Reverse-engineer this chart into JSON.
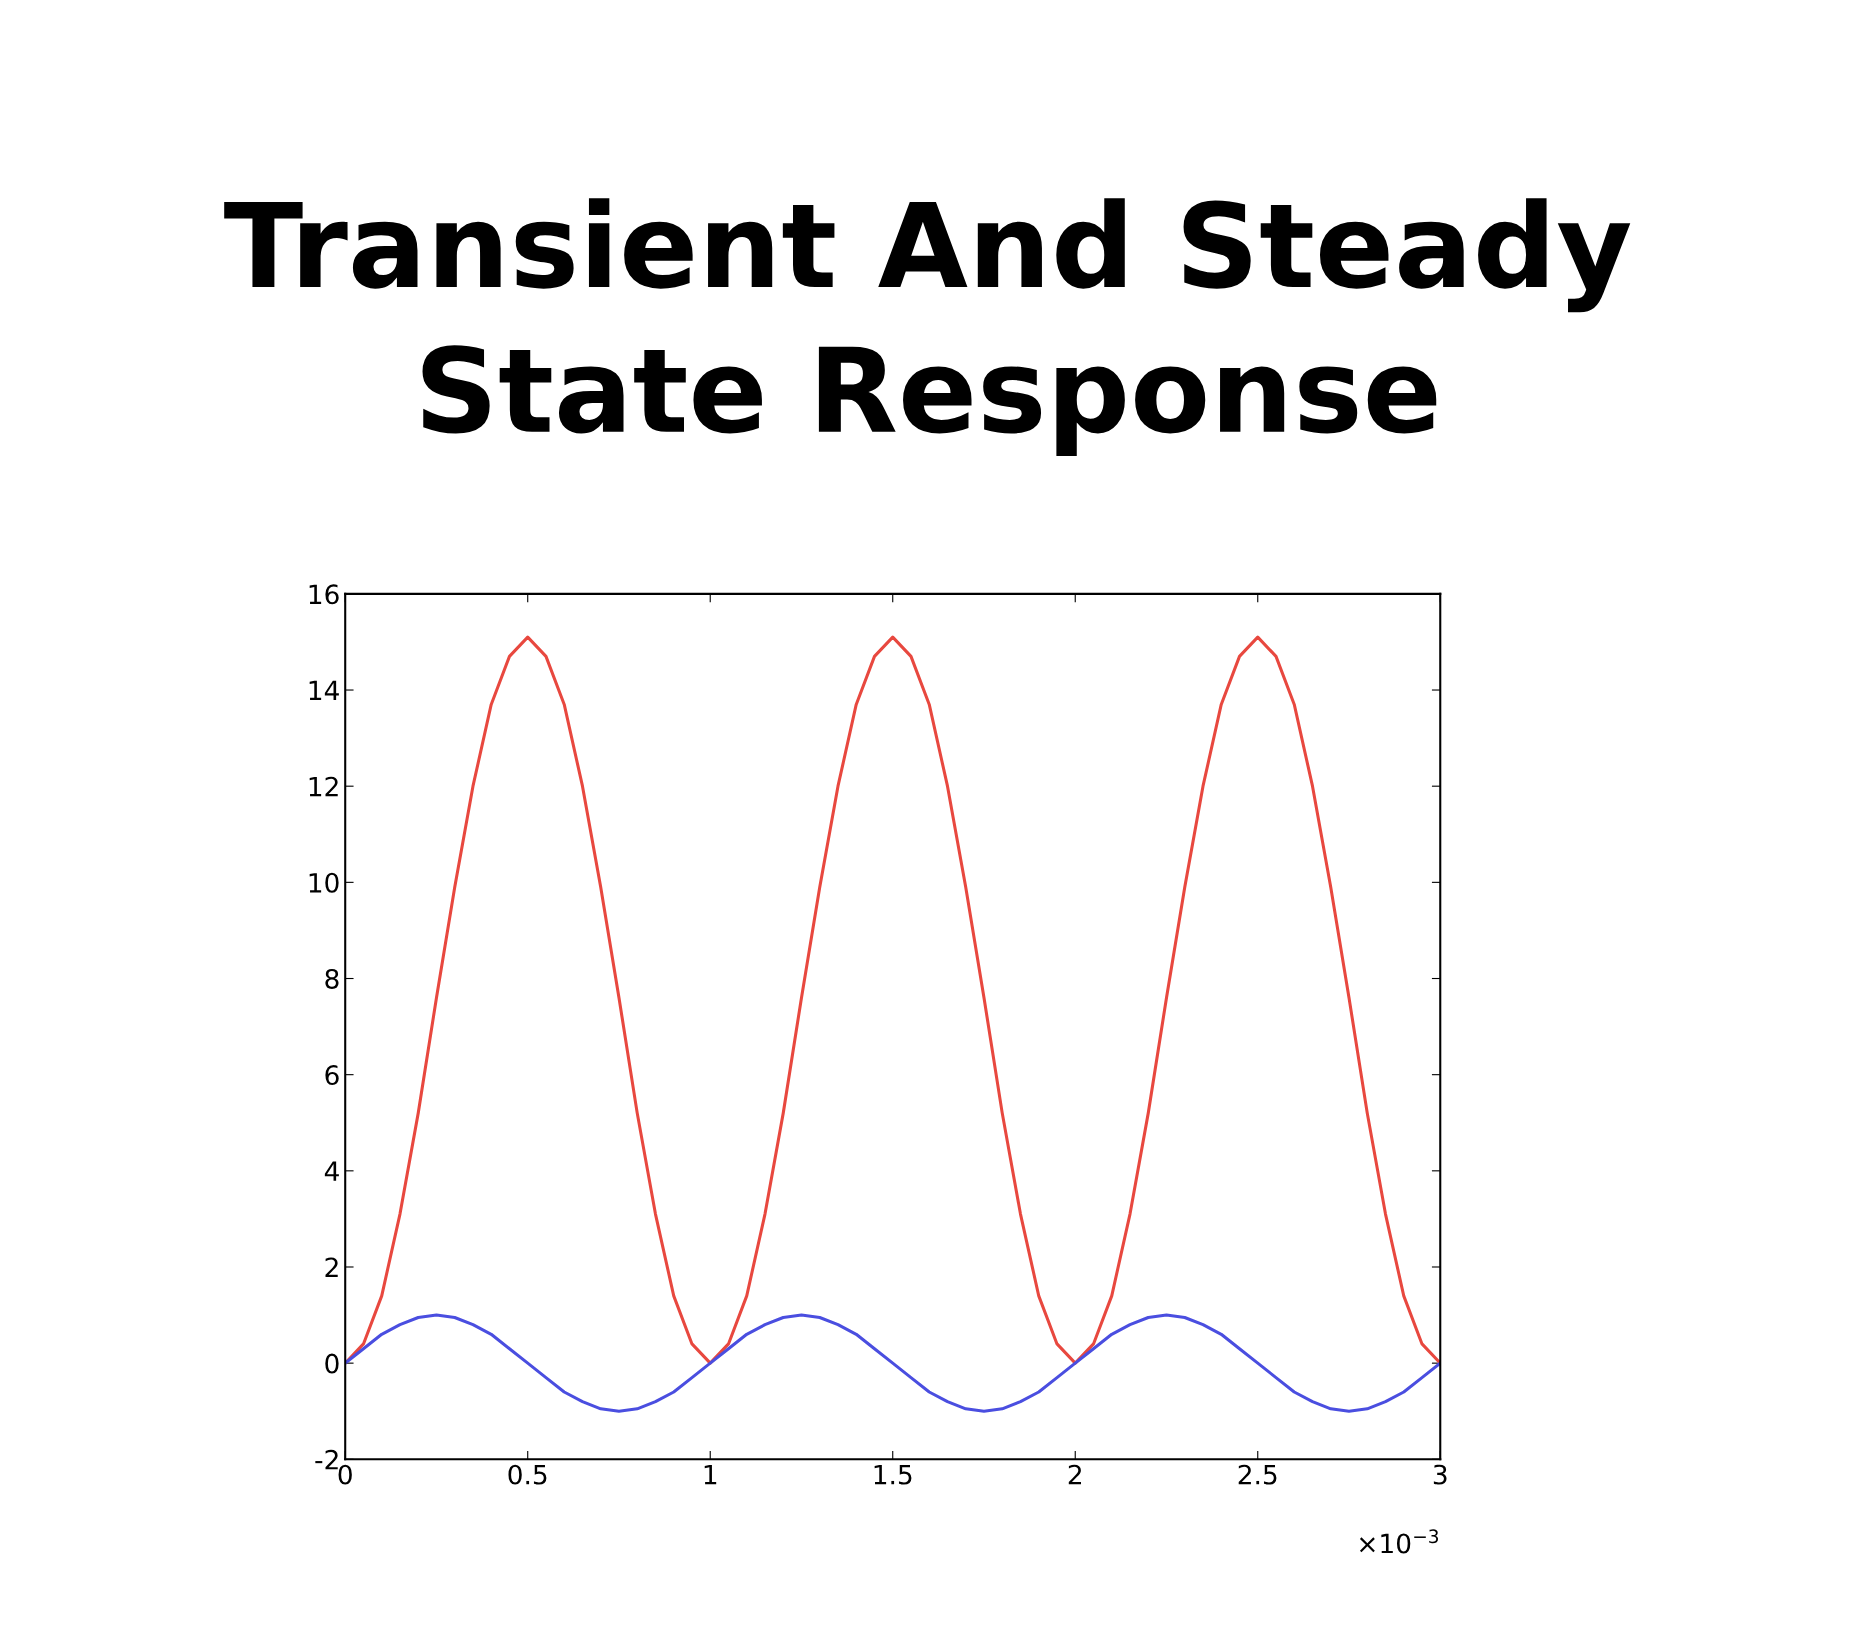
{
  "chart_data": {
    "type": "line",
    "title": "Transient And Steady\nState Response",
    "x": [
      0,
      0.05,
      0.1,
      0.15,
      0.2,
      0.25,
      0.3,
      0.35,
      0.4,
      0.45,
      0.5,
      0.55,
      0.6,
      0.65,
      0.7,
      0.75,
      0.8,
      0.85,
      0.9,
      0.95,
      1,
      1.05,
      1.1,
      1.15,
      1.2,
      1.25,
      1.3,
      1.35,
      1.4,
      1.45,
      1.5,
      1.55,
      1.6,
      1.65,
      1.7,
      1.75,
      1.8,
      1.85,
      1.9,
      1.95,
      2,
      2.05,
      2.1,
      2.15,
      2.2,
      2.25,
      2.3,
      2.35,
      2.4,
      2.45,
      2.5,
      2.55,
      2.6,
      2.65,
      2.7,
      2.75,
      2.8,
      2.85,
      2.9,
      2.95,
      3
    ],
    "series": [
      {
        "color": "#e8483f",
        "values": [
          0,
          0.4,
          1.4,
          3.1,
          5.2,
          7.6,
          9.9,
          12,
          13.7,
          14.7,
          15.1,
          14.7,
          13.7,
          12,
          9.9,
          7.6,
          5.2,
          3.1,
          1.4,
          0.4,
          0,
          0.4,
          1.4,
          3.1,
          5.2,
          7.6,
          9.9,
          12,
          13.7,
          14.7,
          15.1,
          14.7,
          13.7,
          12,
          9.9,
          7.6,
          5.2,
          3.1,
          1.4,
          0.4,
          0,
          0.4,
          1.4,
          3.1,
          5.2,
          7.6,
          9.9,
          12,
          13.7,
          14.7,
          15.1,
          14.7,
          13.7,
          12,
          9.9,
          7.6,
          5.2,
          3.1,
          1.4,
          0.4,
          0
        ]
      },
      {
        "color": "#4a4ee0",
        "values": [
          0,
          0.3,
          0.6,
          0.8,
          0.95,
          1,
          0.95,
          0.8,
          0.6,
          0.3,
          0,
          -0.3,
          -0.6,
          -0.8,
          -0.95,
          -1,
          -0.95,
          -0.8,
          -0.6,
          -0.3,
          0,
          0.3,
          0.6,
          0.8,
          0.95,
          1,
          0.95,
          0.8,
          0.6,
          0.3,
          0,
          -0.3,
          -0.6,
          -0.8,
          -0.95,
          -1,
          -0.95,
          -0.8,
          -0.6,
          -0.3,
          0,
          0.3,
          0.6,
          0.8,
          0.95,
          1,
          0.95,
          0.8,
          0.6,
          0.3,
          0,
          -0.3,
          -0.6,
          -0.8,
          -0.95,
          -1,
          -0.95,
          -0.8,
          -0.6,
          -0.3,
          0
        ]
      }
    ],
    "xlim": [
      0,
      3
    ],
    "ylim": [
      -2,
      16
    ],
    "xticks": [
      0,
      0.5,
      1,
      1.5,
      2,
      2.5,
      3
    ],
    "yticks": [
      -2,
      0,
      2,
      4,
      6,
      8,
      10,
      12,
      14,
      16
    ],
    "annotations": [
      "×10$^{−3}$"
    ],
    "grid": false,
    "legend": false,
    "marker": "none",
    "line_style": "solid"
  }
}
